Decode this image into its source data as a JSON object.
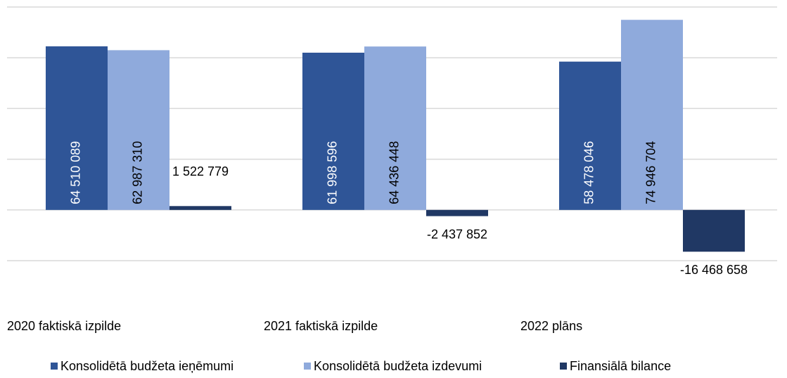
{
  "chart_data": {
    "type": "bar",
    "categories": [
      "2020 faktiskā izpilde",
      "2021 faktiskā izpilde",
      "2022 plāns"
    ],
    "series": [
      {
        "name": "Konsolidētā budžeta ieņēmumi",
        "color": "#2f5597",
        "values": [
          64510089,
          61998596,
          58478046
        ],
        "value_labels": [
          "64 510 089",
          "61 998 596",
          "58 478 046"
        ]
      },
      {
        "name": "Konsolidētā budžeta izdevumi",
        "color": "#8faadc",
        "values": [
          62987310,
          64436448,
          74946704
        ],
        "value_labels": [
          "62 987 310",
          "64 436 448",
          "74 946 704"
        ]
      },
      {
        "name": "Finansiālā bilance",
        "color": "#203864",
        "values": [
          1522779,
          -2437852,
          -16468658
        ],
        "value_labels": [
          "1 522 779",
          "-2 437 852",
          "-16 468 658"
        ]
      }
    ],
    "ylim": [
      -20000000,
      80000000
    ],
    "yticks": [
      -20000000,
      0,
      20000000,
      40000000,
      60000000,
      80000000
    ],
    "grid": true
  }
}
